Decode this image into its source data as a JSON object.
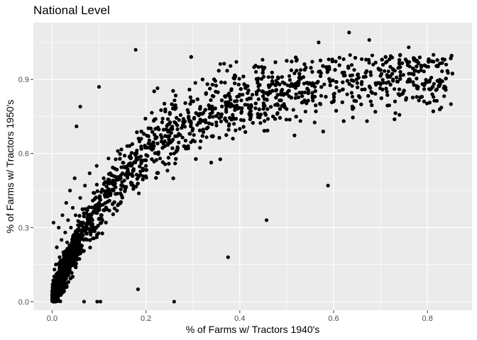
{
  "chart_data": {
    "type": "scatter",
    "title": "National Level",
    "xlabel": "% of Farms w/ Tractors 1940's",
    "ylabel": "% of Farms w/ Tractors 1950's",
    "xlim": [
      -0.04,
      0.895
    ],
    "ylim": [
      -0.035,
      1.13
    ],
    "x_ticks": [
      0.0,
      0.2,
      0.4,
      0.6,
      0.8
    ],
    "x_tick_labels": [
      "0.0",
      "0.2",
      "0.4",
      "0.6",
      "0.8"
    ],
    "y_ticks": [
      0.0,
      0.3,
      0.6,
      0.9
    ],
    "y_tick_labels": [
      "0.0",
      "0.3",
      "0.6",
      "0.9"
    ],
    "grid": true,
    "legend": "none",
    "colors": {
      "panel": "#ebebeb",
      "grid": "#ffffff",
      "point": "#000000"
    },
    "approx_point_count": 3000,
    "points": [
      [
        0.001,
        0.02
      ],
      [
        0.003,
        0.06
      ],
      [
        0.005,
        0.1
      ],
      [
        0.008,
        0.15
      ],
      [
        0.01,
        0.22
      ],
      [
        0.012,
        0.08
      ],
      [
        0.014,
        0.3
      ],
      [
        0.016,
        0.18
      ],
      [
        0.018,
        0.12
      ],
      [
        0.02,
        0.25
      ],
      [
        0.022,
        0.35
      ],
      [
        0.024,
        0.2
      ],
      [
        0.026,
        0.14
      ],
      [
        0.028,
        0.28
      ],
      [
        0.03,
        0.4
      ],
      [
        0.032,
        0.24
      ],
      [
        0.034,
        0.33
      ],
      [
        0.036,
        0.19
      ],
      [
        0.038,
        0.45
      ],
      [
        0.04,
        0.3
      ],
      [
        0.042,
        0.22
      ],
      [
        0.044,
        0.38
      ],
      [
        0.046,
        0.27
      ],
      [
        0.048,
        0.5
      ],
      [
        0.05,
        0.35
      ],
      [
        0.055,
        0.31
      ],
      [
        0.06,
        0.42
      ],
      [
        0.065,
        0.29
      ],
      [
        0.07,
        0.47
      ],
      [
        0.075,
        0.37
      ],
      [
        0.08,
        0.52
      ],
      [
        0.085,
        0.33
      ],
      [
        0.09,
        0.44
      ],
      [
        0.095,
        0.55
      ],
      [
        0.1,
        0.4
      ],
      [
        0.11,
        0.5
      ],
      [
        0.12,
        0.58
      ],
      [
        0.13,
        0.45
      ],
      [
        0.14,
        0.61
      ],
      [
        0.15,
        0.52
      ],
      [
        0.16,
        0.63
      ],
      [
        0.17,
        0.48
      ],
      [
        0.18,
        0.6
      ],
      [
        0.19,
        0.66
      ],
      [
        0.2,
        0.55
      ],
      [
        0.21,
        0.62
      ],
      [
        0.22,
        0.7
      ],
      [
        0.23,
        0.58
      ],
      [
        0.24,
        0.65
      ],
      [
        0.25,
        0.72
      ],
      [
        0.26,
        0.6
      ],
      [
        0.27,
        0.68
      ],
      [
        0.28,
        0.74
      ],
      [
        0.29,
        0.63
      ],
      [
        0.3,
        0.7
      ],
      [
        0.32,
        0.76
      ],
      [
        0.34,
        0.67
      ],
      [
        0.36,
        0.73
      ],
      [
        0.38,
        0.79
      ],
      [
        0.4,
        0.7
      ],
      [
        0.42,
        0.76
      ],
      [
        0.44,
        0.82
      ],
      [
        0.46,
        0.74
      ],
      [
        0.48,
        0.8
      ],
      [
        0.5,
        0.78
      ],
      [
        0.52,
        0.84
      ],
      [
        0.54,
        0.77
      ],
      [
        0.56,
        0.83
      ],
      [
        0.58,
        0.88
      ],
      [
        0.6,
        0.81
      ],
      [
        0.62,
        0.86
      ],
      [
        0.64,
        0.83
      ],
      [
        0.66,
        0.89
      ],
      [
        0.68,
        0.85
      ],
      [
        0.7,
        0.88
      ],
      [
        0.72,
        0.91
      ],
      [
        0.74,
        0.86
      ],
      [
        0.76,
        0.9
      ],
      [
        0.78,
        0.87
      ],
      [
        0.8,
        0.89
      ],
      [
        0.82,
        0.86
      ],
      [
        0.85,
        0.8
      ],
      [
        0.84,
        0.96
      ],
      [
        0.633,
        1.09
      ],
      [
        0.676,
        1.06
      ],
      [
        0.76,
        1.03
      ],
      [
        0.568,
        1.05
      ],
      [
        0.178,
        1.02
      ],
      [
        0.26,
        0.0
      ],
      [
        0.096,
        0.0
      ],
      [
        0.068,
        0.0
      ],
      [
        0.103,
        0.0
      ],
      [
        0.588,
        0.47
      ],
      [
        0.457,
        0.33
      ],
      [
        0.375,
        0.18
      ],
      [
        0.183,
        0.05
      ],
      [
        0.1,
        0.87
      ],
      [
        0.06,
        0.79
      ],
      [
        0.052,
        0.71
      ],
      [
        0.003,
        0.32
      ],
      [
        0.005,
        0.13
      ]
    ]
  }
}
